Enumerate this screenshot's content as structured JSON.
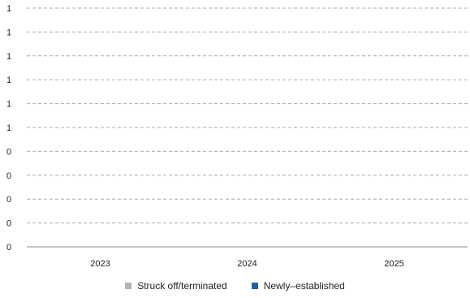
{
  "chart_data": {
    "type": "bar",
    "categories": [
      "2023",
      "2024",
      "2025"
    ],
    "y_tick_labels": [
      "0",
      "0",
      "0",
      "0",
      "0",
      "1",
      "1",
      "1",
      "1",
      "1",
      "1"
    ],
    "series": [
      {
        "name": "Struck off/terminated",
        "color": "#b3b3b3",
        "values": [
          0,
          0,
          0
        ]
      },
      {
        "name": "Newly–established",
        "color": "#1f5fa8",
        "values": [
          0,
          0,
          0
        ]
      }
    ],
    "ylim": [
      0,
      1
    ],
    "grid": true,
    "legend_position": "bottom"
  }
}
